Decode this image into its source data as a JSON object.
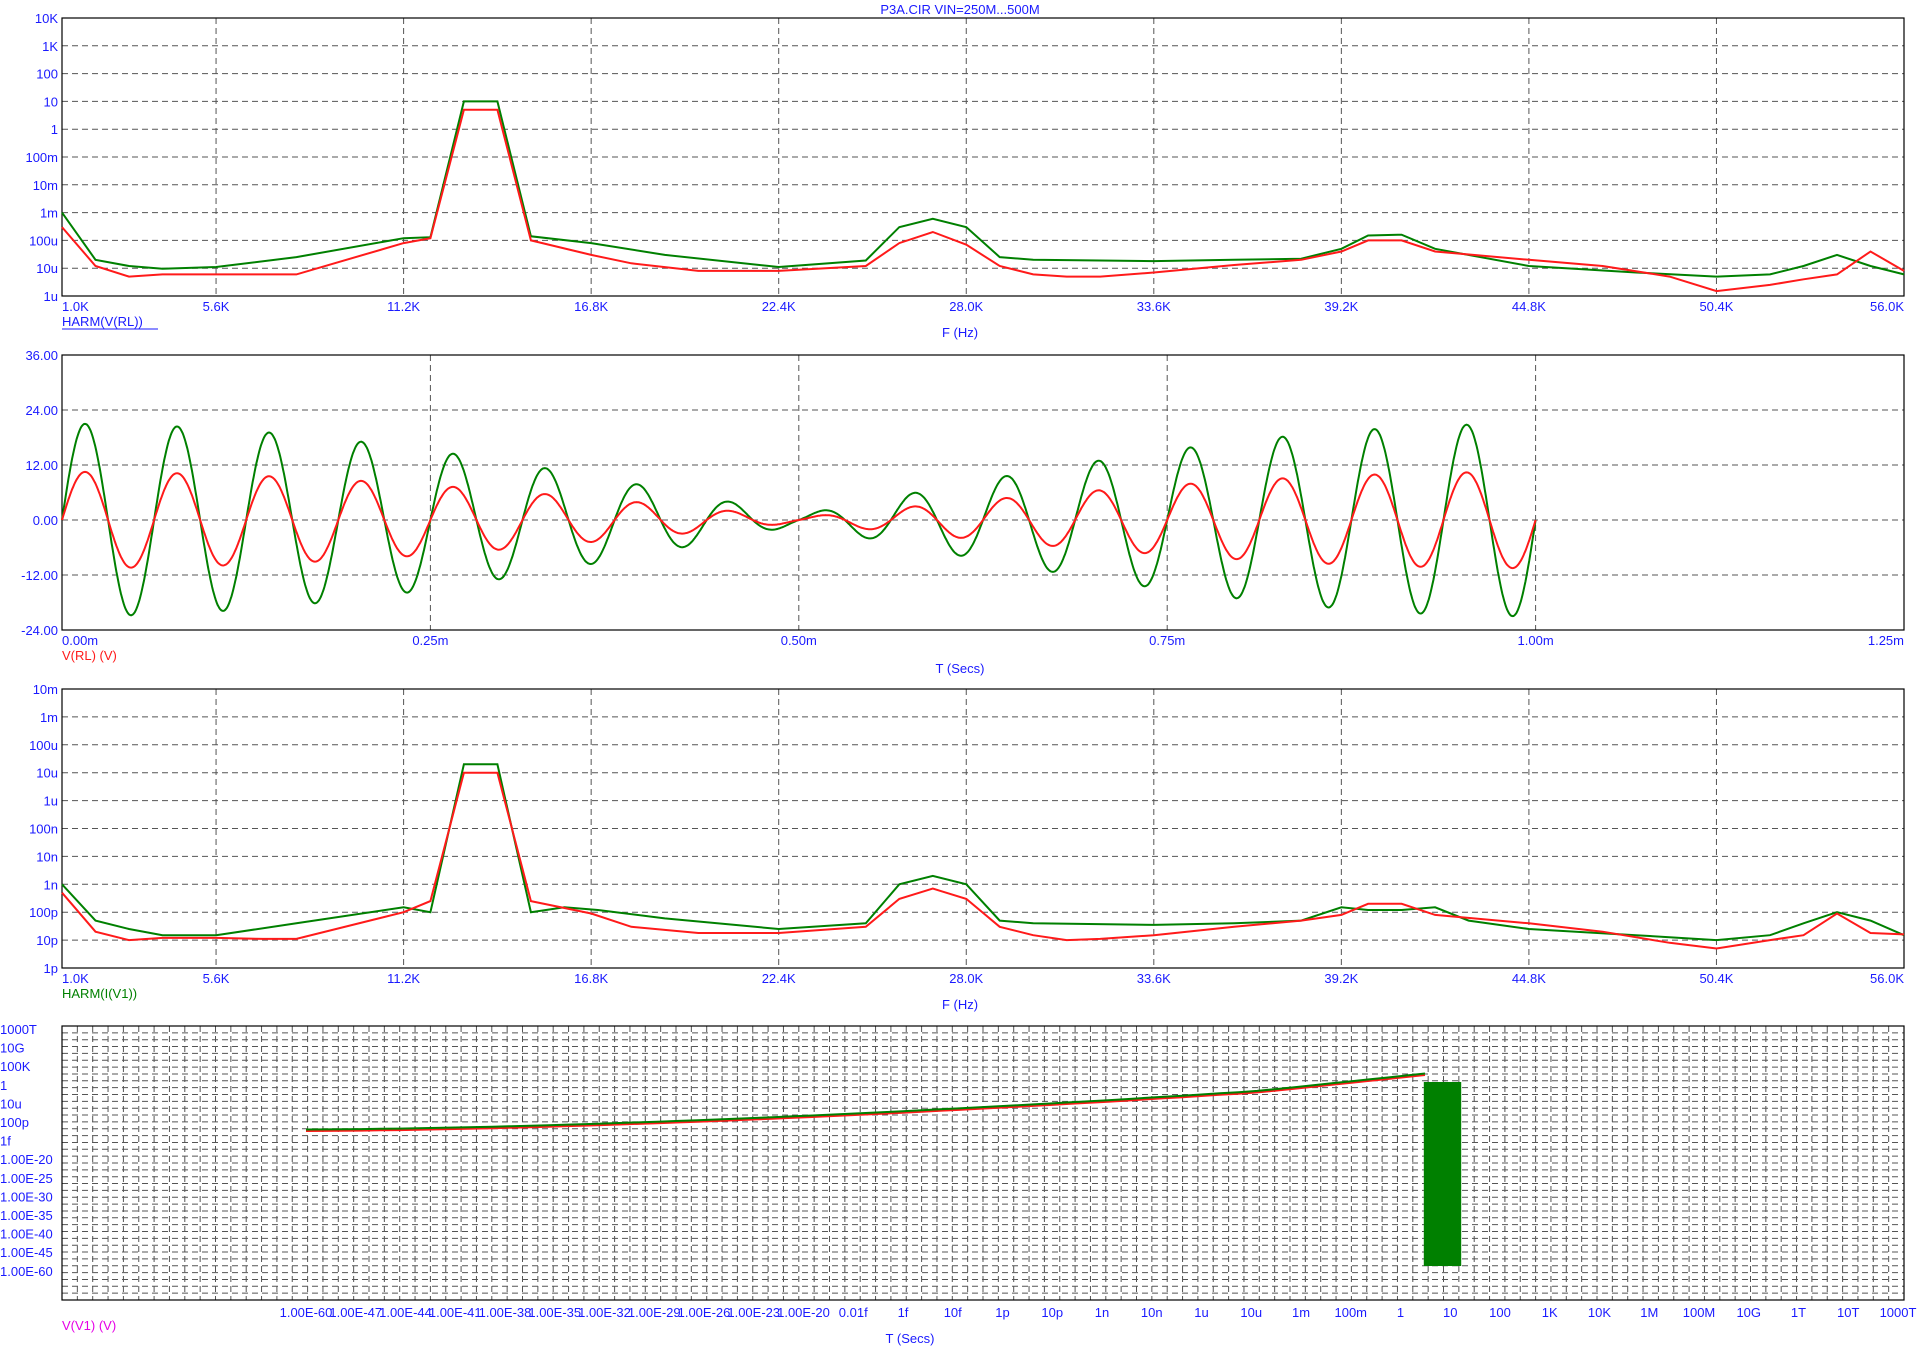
{
  "window_title": "P3A.CIR VIN=250M...500M",
  "colors": {
    "axis_text": "#1a1aff",
    "grid": "#555555",
    "series_green": "#008000",
    "series_red": "#ff1a1a",
    "label_v1": "#e600e6"
  },
  "chart_data": [
    {
      "type": "line",
      "yscale": "log",
      "xlabel": "F (Hz)",
      "trace_label": "HARM(V(RL))",
      "trace_label_color": "blue",
      "x_ticks": [
        "1.0K",
        "5.6K",
        "11.2K",
        "16.8K",
        "22.4K",
        "28.0K",
        "33.6K",
        "39.2K",
        "44.8K",
        "50.4K",
        "56.0K"
      ],
      "x_tick_values": [
        1000,
        5600,
        11200,
        16800,
        22400,
        28000,
        33600,
        39200,
        44800,
        50400,
        56000
      ],
      "xlim": [
        1000,
        56000
      ],
      "y_ticks": [
        "10K",
        "1K",
        "100",
        "10",
        "1",
        "100m",
        "10m",
        "1m",
        "100u",
        "10u",
        "1u"
      ],
      "ylim_log10": [
        -6,
        4
      ],
      "series": [
        {
          "color": "green",
          "x": [
            1000,
            2000,
            3000,
            4000,
            5600,
            8000,
            11200,
            12000,
            13000,
            14000,
            15000,
            16800,
            19000,
            22400,
            25000,
            26000,
            27000,
            28000,
            29000,
            30000,
            33600,
            36000,
            38000,
            39200,
            40000,
            41000,
            42000,
            44800,
            48000,
            50400,
            52000,
            53000,
            54000,
            55000,
            56000
          ],
          "y": [
            0.001,
            2e-05,
            1.2e-05,
            9.5e-06,
            1.1e-05,
            2.5e-05,
            0.00012,
            0.00013,
            10,
            10,
            0.00014,
            8e-05,
            3e-05,
            1.1e-05,
            1.9e-05,
            0.0003,
            0.0006,
            0.0003,
            2.5e-05,
            2e-05,
            1.8e-05,
            2e-05,
            2.2e-05,
            5e-05,
            0.00015,
            0.00016,
            5e-05,
            1.2e-05,
            7e-06,
            5e-06,
            6e-06,
            1.2e-05,
            3e-05,
            1.2e-05,
            6e-06
          ]
        },
        {
          "color": "red",
          "x": [
            1000,
            2000,
            3000,
            4000,
            5600,
            7000,
            8000,
            11200,
            12000,
            13000,
            14000,
            15000,
            16800,
            18000,
            20000,
            22400,
            25000,
            26000,
            27000,
            28000,
            29000,
            30000,
            31000,
            32000,
            33600,
            36000,
            38000,
            39200,
            40000,
            41000,
            42000,
            44800,
            47000,
            49000,
            50400,
            52000,
            53000,
            54000,
            55000,
            56000
          ],
          "y": [
            0.0003,
            1.2e-05,
            5e-06,
            6e-06,
            6e-06,
            6e-06,
            6e-06,
            8e-05,
            0.00012,
            5,
            5,
            0.0001,
            3e-05,
            1.5e-05,
            8e-06,
            8e-06,
            1.2e-05,
            8e-05,
            0.0002,
            7e-05,
            1.2e-05,
            6e-06,
            5e-06,
            5e-06,
            7e-06,
            1.3e-05,
            2e-05,
            4e-05,
            0.0001,
            0.0001,
            4e-05,
            2e-05,
            1.2e-05,
            5e-06,
            1.5e-06,
            2.5e-06,
            4e-06,
            6e-06,
            4e-05,
            8e-06
          ]
        }
      ]
    },
    {
      "type": "line",
      "xlabel": "T (Secs)",
      "trace_label": "V(RL) (V)",
      "trace_label_color": "red",
      "x_ticks": [
        "0.00m",
        "0.25m",
        "0.50m",
        "0.75m",
        "1.00m",
        "1.25m"
      ],
      "x_tick_values": [
        0,
        0.25,
        0.5,
        0.75,
        1.0,
        1.25
      ],
      "xlim": [
        0,
        1.25
      ],
      "y_ticks": [
        "36.00",
        "24.00",
        "12.00",
        "0.00",
        "-12.00",
        "-24.00"
      ],
      "y_tick_values": [
        36,
        24,
        12,
        0,
        -12,
        -24
      ],
      "ylim": [
        -24,
        36
      ],
      "waveform": {
        "period_ms": 0.0625,
        "duration_ms": 1.0,
        "envelope": "|cos(pi*t/1.0ms)|",
        "amplitude_green": 21,
        "amplitude_red": 10.5
      }
    },
    {
      "type": "line",
      "yscale": "log",
      "xlabel": "F (Hz)",
      "trace_label": "HARM(I(V1))",
      "trace_label_color": "green",
      "x_ticks": [
        "1.0K",
        "5.6K",
        "11.2K",
        "16.8K",
        "22.4K",
        "28.0K",
        "33.6K",
        "39.2K",
        "44.8K",
        "50.4K",
        "56.0K"
      ],
      "x_tick_values": [
        1000,
        5600,
        11200,
        16800,
        22400,
        28000,
        33600,
        39200,
        44800,
        50400,
        56000
      ],
      "xlim": [
        1000,
        56000
      ],
      "y_ticks": [
        "10m",
        "1m",
        "100u",
        "10u",
        "1u",
        "100n",
        "10n",
        "1n",
        "100p",
        "10p",
        "1p"
      ],
      "ylim_log10": [
        -12,
        -2
      ],
      "series": [
        {
          "color": "green",
          "x": [
            1000,
            2000,
            3000,
            4000,
            5600,
            8000,
            11200,
            12000,
            13000,
            14000,
            15000,
            16000,
            17000,
            19000,
            22400,
            25000,
            26000,
            27000,
            28000,
            29000,
            30000,
            33600,
            36000,
            38000,
            39200,
            40000,
            41000,
            42000,
            43000,
            44800,
            48000,
            50400,
            52000,
            53000,
            54000,
            55000,
            56000
          ],
          "y": [
            1e-09,
            5e-11,
            2.5e-11,
            1.5e-11,
            1.5e-11,
            4e-11,
            1.5e-10,
            1e-10,
            2e-05,
            2e-05,
            1e-10,
            1.5e-10,
            1.2e-10,
            6e-11,
            2.5e-11,
            4e-11,
            1e-09,
            2e-09,
            1e-09,
            5e-11,
            4e-11,
            3.5e-11,
            4e-11,
            5e-11,
            1.5e-10,
            1.2e-10,
            1.2e-10,
            1.5e-10,
            5e-11,
            2.5e-11,
            1.5e-11,
            1e-11,
            1.5e-11,
            4e-11,
            1e-10,
            5e-11,
            1.5e-11
          ]
        },
        {
          "color": "red",
          "x": [
            1000,
            2000,
            3000,
            4000,
            5600,
            7000,
            8000,
            11200,
            12000,
            13000,
            14000,
            15000,
            16800,
            18000,
            20000,
            22400,
            25000,
            26000,
            27000,
            28000,
            29000,
            30000,
            31000,
            32000,
            33600,
            36000,
            38000,
            39200,
            40000,
            41000,
            42000,
            44800,
            47000,
            49000,
            50400,
            52000,
            53000,
            54000,
            55000,
            56000
          ],
          "y": [
            5e-10,
            2e-11,
            1e-11,
            1.2e-11,
            1.2e-11,
            1.1e-11,
            1.1e-11,
            1e-10,
            2.5e-10,
            1e-05,
            1e-05,
            2.5e-10,
            9e-11,
            3e-11,
            1.8e-11,
            1.8e-11,
            3e-11,
            3e-10,
            7e-10,
            3e-10,
            3e-11,
            1.5e-11,
            1e-11,
            1.1e-11,
            1.5e-11,
            3e-11,
            5e-11,
            8e-11,
            2e-10,
            2e-10,
            8e-11,
            4e-11,
            2e-11,
            8e-12,
            5e-12,
            1e-11,
            1.5e-11,
            9e-11,
            1.8e-11,
            1.6e-11
          ]
        }
      ]
    },
    {
      "type": "line",
      "yscale": "log",
      "xscale": "log",
      "xlabel": "T (Secs)",
      "trace_label": "V(V1) (V)",
      "trace_label_color": "magenta",
      "x_ticks": [
        "1.00E-60",
        "1.00E-47",
        "1.00E-44",
        "1.00E-41",
        "1.00E-38",
        "1.00E-35",
        "1.00E-32",
        "1.00E-29",
        "1.00E-26",
        "1.00E-23",
        "1.00E-20",
        "0.01f",
        "1f",
        "10f",
        "1p",
        "10p",
        "1n",
        "10n",
        "1u",
        "10u",
        "1m",
        "100m",
        "1",
        "10",
        "100",
        "1K",
        "10K",
        "1M",
        "100M",
        "10G",
        "1T",
        "10T",
        "1000T"
      ],
      "y_ticks": [
        "1000T",
        "10G",
        "100K",
        "1",
        "10u",
        "100p",
        "1f",
        "1.00E-20",
        "1.00E-25",
        "1.00E-30",
        "1.00E-35",
        "1.00E-40",
        "1.00E-45",
        "1.00E-60"
      ],
      "trend": {
        "from_t": "1.00E-60",
        "to_t": "10u",
        "oscillation_region": [
          "10u",
          "1m"
        ]
      }
    }
  ]
}
